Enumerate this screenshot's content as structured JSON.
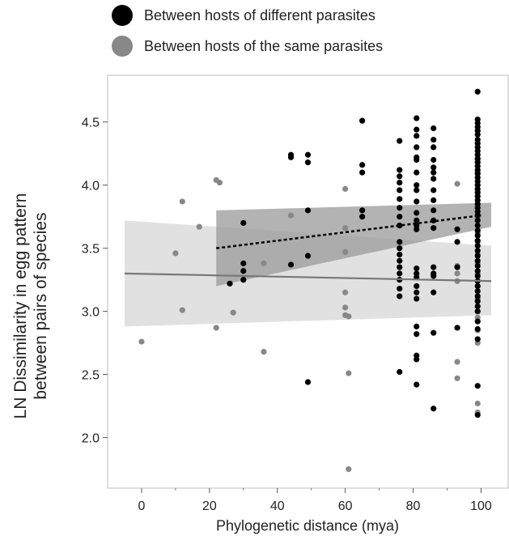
{
  "chart_data": {
    "type": "scatter",
    "xlabel": "Phylogenetic distance (mya)",
    "ylabel_lines": [
      "LN Dissimilarity in egg pattern",
      "between pairs of species"
    ],
    "xlim": [
      -10,
      108
    ],
    "ylim": [
      1.6,
      4.87
    ],
    "xticks": [
      "0",
      "20",
      "40",
      "60",
      "80",
      "100"
    ],
    "yticks": [
      "2.0",
      "2.5",
      "3.0",
      "3.5",
      "4.0",
      "4.5"
    ],
    "grid": false,
    "legend_position": "top-left",
    "colors": {
      "different": "#000000",
      "same": "#888888",
      "band_same": "#dcdcdc",
      "band_diff": "#9a9a9a"
    },
    "legend": [
      {
        "label": "Between hosts of different parasites",
        "color": "#000000"
      },
      {
        "label": "Between hosts of the same parasites",
        "color": "#888888"
      }
    ],
    "series": [
      {
        "name": "Between hosts of different parasites",
        "color": "#000000",
        "fit": {
          "x": [
            22,
            100
          ],
          "y": [
            3.5,
            3.76
          ],
          "style": "dotted"
        },
        "band": {
          "x": [
            22,
            103
          ],
          "upper": [
            3.8,
            3.86
          ],
          "lower": [
            3.2,
            3.67
          ]
        },
        "points": [
          [
            26,
            3.22
          ],
          [
            30,
            3.7
          ],
          [
            30,
            3.38
          ],
          [
            30,
            3.32
          ],
          [
            30,
            3.25
          ],
          [
            44,
            4.24
          ],
          [
            44,
            4.22
          ],
          [
            44,
            3.37
          ],
          [
            49,
            4.24
          ],
          [
            49,
            4.18
          ],
          [
            49,
            3.8
          ],
          [
            49,
            3.44
          ],
          [
            49,
            2.44
          ],
          [
            65,
            4.51
          ],
          [
            65,
            4.16
          ],
          [
            65,
            4.1
          ],
          [
            65,
            3.8
          ],
          [
            65,
            3.75
          ],
          [
            76,
            4.35
          ],
          [
            76,
            4.12
          ],
          [
            76,
            4.07
          ],
          [
            76,
            4.02
          ],
          [
            76,
            3.96
          ],
          [
            76,
            3.89
          ],
          [
            76,
            3.82
          ],
          [
            76,
            3.75
          ],
          [
            76,
            3.68
          ],
          [
            76,
            3.55
          ],
          [
            76,
            3.5
          ],
          [
            76,
            3.45
          ],
          [
            76,
            3.4
          ],
          [
            76,
            3.35
          ],
          [
            76,
            3.3
          ],
          [
            76,
            3.25
          ],
          [
            76,
            3.18
          ],
          [
            76,
            3.12
          ],
          [
            76,
            2.52
          ],
          [
            81,
            4.53
          ],
          [
            81,
            4.44
          ],
          [
            81,
            4.39
          ],
          [
            81,
            4.3
          ],
          [
            81,
            4.22
          ],
          [
            81,
            4.2
          ],
          [
            81,
            4.1
          ],
          [
            81,
            4.0
          ],
          [
            81,
            3.96
          ],
          [
            81,
            3.87
          ],
          [
            81,
            3.78
          ],
          [
            81,
            3.72
          ],
          [
            81,
            3.68
          ],
          [
            81,
            3.65
          ],
          [
            81,
            3.34
          ],
          [
            81,
            3.3
          ],
          [
            81,
            3.27
          ],
          [
            81,
            3.2
          ],
          [
            81,
            3.15
          ],
          [
            81,
            3.1
          ],
          [
            81,
            2.88
          ],
          [
            81,
            2.82
          ],
          [
            81,
            2.65
          ],
          [
            81,
            2.62
          ],
          [
            81,
            2.42
          ],
          [
            86,
            4.45
          ],
          [
            86,
            4.36
          ],
          [
            86,
            4.3
          ],
          [
            86,
            4.2
          ],
          [
            86,
            4.14
          ],
          [
            86,
            4.1
          ],
          [
            86,
            4.05
          ],
          [
            86,
            3.96
          ],
          [
            86,
            3.88
          ],
          [
            86,
            3.8
          ],
          [
            86,
            3.72
          ],
          [
            86,
            3.66
          ],
          [
            86,
            3.35
          ],
          [
            86,
            3.3
          ],
          [
            86,
            3.28
          ],
          [
            86,
            3.15
          ],
          [
            86,
            2.83
          ],
          [
            86,
            2.23
          ],
          [
            93,
            3.65
          ],
          [
            93,
            3.55
          ],
          [
            93,
            3.35
          ],
          [
            93,
            2.87
          ],
          [
            99,
            4.74
          ],
          [
            99,
            4.52
          ],
          [
            99,
            4.49
          ],
          [
            99,
            4.46
          ],
          [
            99,
            4.43
          ],
          [
            99,
            4.4
          ],
          [
            99,
            4.36
          ],
          [
            99,
            4.33
          ],
          [
            99,
            4.3
          ],
          [
            99,
            4.27
          ],
          [
            99,
            4.24
          ],
          [
            99,
            4.21
          ],
          [
            99,
            4.18
          ],
          [
            99,
            4.15
          ],
          [
            99,
            4.12
          ],
          [
            99,
            4.09
          ],
          [
            99,
            4.06
          ],
          [
            99,
            4.03
          ],
          [
            99,
            4.0
          ],
          [
            99,
            3.97
          ],
          [
            99,
            3.94
          ],
          [
            99,
            3.91
          ],
          [
            99,
            3.88
          ],
          [
            99,
            3.85
          ],
          [
            99,
            3.82
          ],
          [
            99,
            3.79
          ],
          [
            99,
            3.76
          ],
          [
            99,
            3.72
          ],
          [
            99,
            3.68
          ],
          [
            99,
            3.64
          ],
          [
            99,
            3.6
          ],
          [
            99,
            3.56
          ],
          [
            99,
            3.52
          ],
          [
            99,
            3.48
          ],
          [
            99,
            3.44
          ],
          [
            99,
            3.4
          ],
          [
            99,
            3.36
          ],
          [
            99,
            3.32
          ],
          [
            99,
            3.28
          ],
          [
            99,
            3.24
          ],
          [
            99,
            3.2
          ],
          [
            99,
            3.16
          ],
          [
            99,
            3.12
          ],
          [
            99,
            3.08
          ],
          [
            99,
            3.04
          ],
          [
            99,
            3.0
          ],
          [
            99,
            2.92
          ],
          [
            99,
            2.86
          ],
          [
            99,
            2.78
          ],
          [
            99,
            2.41
          ],
          [
            99,
            2.18
          ]
        ]
      },
      {
        "name": "Between hosts of the same parasites",
        "color": "#888888",
        "fit": {
          "x": [
            -5,
            103
          ],
          "y": [
            3.3,
            3.24
          ],
          "style": "solid"
        },
        "band": {
          "x": [
            -5,
            103
          ],
          "upper": [
            3.72,
            3.52
          ],
          "lower": [
            2.88,
            2.97
          ]
        },
        "points": [
          [
            0,
            2.76
          ],
          [
            10,
            3.46
          ],
          [
            12,
            3.87
          ],
          [
            12,
            3.01
          ],
          [
            17,
            3.67
          ],
          [
            22,
            4.04
          ],
          [
            22,
            2.87
          ],
          [
            23,
            4.02
          ],
          [
            27,
            2.99
          ],
          [
            30,
            3.25
          ],
          [
            36,
            3.38
          ],
          [
            36,
            2.68
          ],
          [
            44,
            3.76
          ],
          [
            60,
            3.97
          ],
          [
            60,
            3.66
          ],
          [
            60,
            3.47
          ],
          [
            60,
            3.15
          ],
          [
            60,
            3.03
          ],
          [
            60,
            2.97
          ],
          [
            61,
            2.96
          ],
          [
            61,
            2.51
          ],
          [
            61,
            1.75
          ],
          [
            93,
            4.01
          ],
          [
            93,
            3.36
          ],
          [
            93,
            3.3
          ],
          [
            93,
            3.24
          ],
          [
            93,
            2.6
          ],
          [
            93,
            2.47
          ],
          [
            99,
            4.2
          ],
          [
            99,
            4.1
          ],
          [
            99,
            3.95
          ],
          [
            99,
            3.85
          ],
          [
            99,
            3.75
          ],
          [
            99,
            3.62
          ],
          [
            99,
            3.55
          ],
          [
            99,
            3.45
          ],
          [
            99,
            3.38
          ],
          [
            99,
            3.3
          ],
          [
            99,
            3.2
          ],
          [
            99,
            3.1
          ],
          [
            99,
            3.0
          ],
          [
            99,
            2.95
          ],
          [
            99,
            2.85
          ],
          [
            99,
            2.75
          ],
          [
            99,
            2.27
          ],
          [
            99,
            2.2
          ]
        ]
      }
    ]
  }
}
